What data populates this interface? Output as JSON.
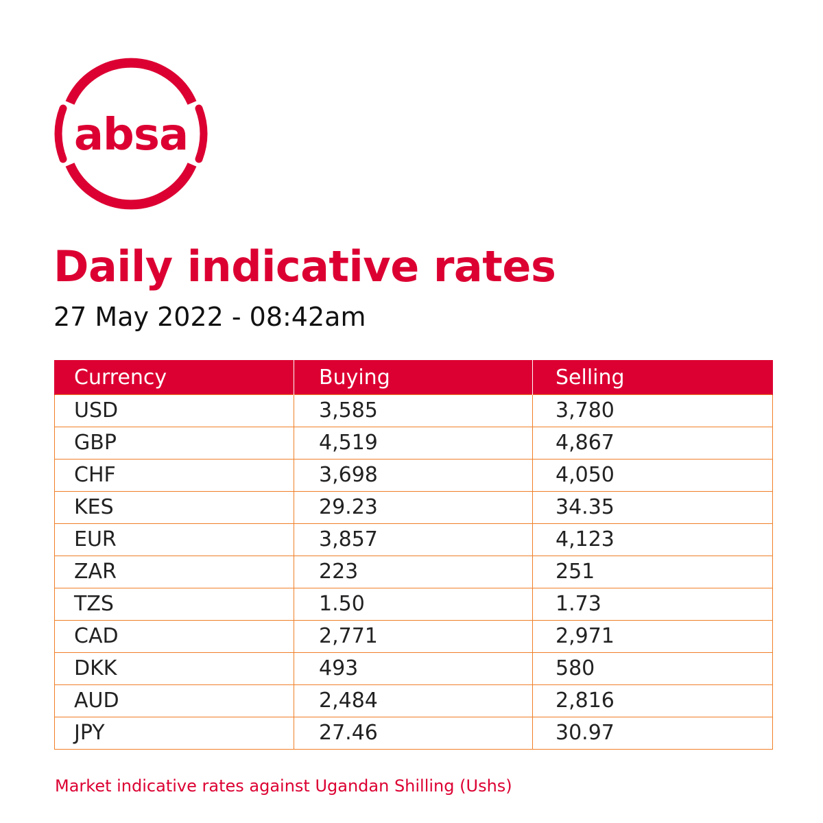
{
  "brand": {
    "logo_text": "absa",
    "color": "#dc0032",
    "border_color": "#f07e26"
  },
  "title": "Daily indicative rates",
  "subtitle": "27 May 2022 - 08:42am",
  "table": {
    "headers": [
      "Currency",
      "Buying",
      "Selling"
    ],
    "rows": [
      {
        "currency": "USD",
        "buying": "3,585",
        "selling": "3,780"
      },
      {
        "currency": "GBP",
        "buying": "4,519",
        "selling": "4,867"
      },
      {
        "currency": "CHF",
        "buying": "3,698",
        "selling": "4,050"
      },
      {
        "currency": "KES",
        "buying": "29.23",
        "selling": "34.35"
      },
      {
        "currency": "EUR",
        "buying": "3,857",
        "selling": "4,123"
      },
      {
        "currency": "ZAR",
        "buying": "223",
        "selling": "251"
      },
      {
        "currency": "TZS",
        "buying": "1.50",
        "selling": "1.73"
      },
      {
        "currency": "CAD",
        "buying": "2,771",
        "selling": "2,971"
      },
      {
        "currency": "DKK",
        "buying": "493",
        "selling": "580"
      },
      {
        "currency": "AUD",
        "buying": "2,484",
        "selling": "2,816"
      },
      {
        "currency": "JPY",
        "buying": "27.46",
        "selling": "30.97"
      }
    ]
  },
  "footnote": "Market indicative rates against Ugandan Shilling (Ushs)"
}
